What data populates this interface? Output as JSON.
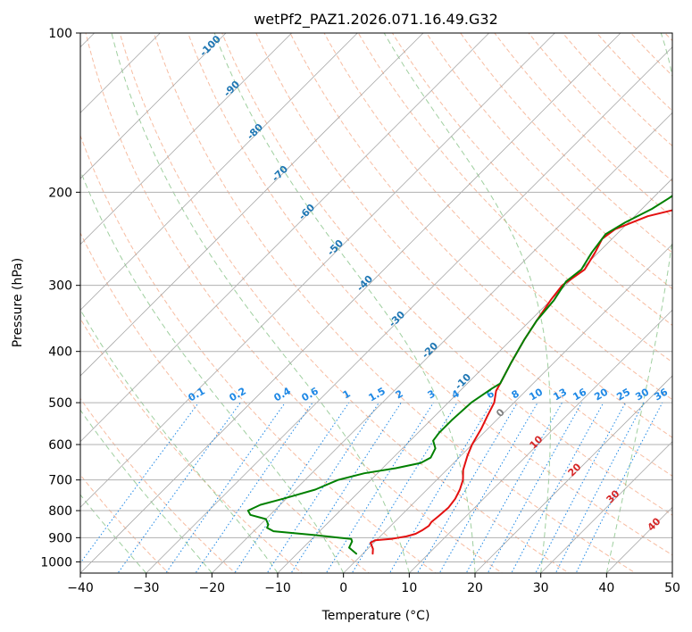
{
  "chart_data": {
    "type": "line",
    "title": "wetPf2_PAZ1.2026.071.16.49.G32",
    "xlabel": "Temperature (°C)",
    "ylabel": "Pressure (hPa)",
    "xlim": [
      -40,
      50
    ],
    "ylim": [
      1050,
      100
    ],
    "y_scale": "log",
    "grid": true,
    "x_ticks": [
      -40,
      -30,
      -20,
      -10,
      0,
      10,
      20,
      30,
      40,
      50
    ],
    "x_tick_labels": [
      "−40",
      "−30",
      "−20",
      "−10",
      "0",
      "10",
      "20",
      "30",
      "40",
      "50"
    ],
    "y_ticks": [
      100,
      200,
      300,
      400,
      500,
      600,
      700,
      800,
      900,
      1000
    ],
    "y_tick_labels": [
      "100",
      "200",
      "300",
      "400",
      "500",
      "600",
      "700",
      "800",
      "900",
      "1000"
    ],
    "series": [
      {
        "name": "Temperature",
        "color": "#e31010",
        "points": [
          [
            1.5,
            965
          ],
          [
            0.8,
            945
          ],
          [
            -0.5,
            920
          ],
          [
            -0.2,
            910
          ],
          [
            2.0,
            905
          ],
          [
            4.0,
            895
          ],
          [
            5.0,
            885
          ],
          [
            5.5,
            870
          ],
          [
            5.8,
            855
          ],
          [
            5.6,
            840
          ],
          [
            5.8,
            820
          ],
          [
            6.0,
            790
          ],
          [
            5.7,
            760
          ],
          [
            5.0,
            730
          ],
          [
            4.0,
            700
          ],
          [
            2.5,
            670
          ],
          [
            1.0,
            630
          ],
          [
            0.0,
            600
          ],
          [
            -1.0,
            560
          ],
          [
            -2.0,
            530
          ],
          [
            -3.0,
            500
          ],
          [
            -4.5,
            475
          ],
          [
            -5.0,
            460
          ],
          [
            -6.5,
            420
          ],
          [
            -8.0,
            380
          ],
          [
            -9.0,
            350
          ],
          [
            -10.0,
            320
          ],
          [
            -10.5,
            300
          ],
          [
            -9.5,
            280
          ],
          [
            -10.5,
            260
          ],
          [
            -11.5,
            245
          ],
          [
            -11.0,
            235
          ],
          [
            -8.0,
            222
          ],
          [
            -3.0,
            212
          ],
          [
            5.0,
            200
          ],
          [
            9.0,
            194
          ],
          [
            14.0,
            180
          ],
          [
            17.0,
            165
          ],
          [
            20.0,
            150
          ],
          [
            23.0,
            135
          ],
          [
            24.5,
            125
          ],
          [
            26.0,
            118
          ],
          [
            28.0,
            110
          ],
          [
            30.0,
            100
          ]
        ]
      },
      {
        "name": "Dewpoint",
        "color": "#008000",
        "points": [
          [
            -1.0,
            965
          ],
          [
            -3.0,
            940
          ],
          [
            -3.5,
            915
          ],
          [
            -4.0,
            905
          ],
          [
            -10.0,
            890
          ],
          [
            -17.0,
            875
          ],
          [
            -18.5,
            862
          ],
          [
            -18.8,
            850
          ],
          [
            -20.0,
            830
          ],
          [
            -23.0,
            815
          ],
          [
            -24.0,
            800
          ],
          [
            -23.0,
            780
          ],
          [
            -20.5,
            760
          ],
          [
            -17.0,
            730
          ],
          [
            -15.0,
            700
          ],
          [
            -12.0,
            680
          ],
          [
            -8.0,
            665
          ],
          [
            -5.0,
            650
          ],
          [
            -4.3,
            635
          ],
          [
            -5.0,
            610
          ],
          [
            -6.5,
            590
          ],
          [
            -6.8,
            570
          ],
          [
            -6.8,
            540
          ],
          [
            -6.5,
            500
          ],
          [
            -5.5,
            470
          ],
          [
            -5.0,
            460
          ],
          [
            -6.5,
            420
          ],
          [
            -8.0,
            380
          ],
          [
            -9.0,
            350
          ],
          [
            -9.5,
            320
          ],
          [
            -10.5,
            295
          ],
          [
            -10.0,
            280
          ],
          [
            -11.0,
            260
          ],
          [
            -11.7,
            240
          ],
          [
            -10.5,
            228
          ],
          [
            -8.5,
            215
          ],
          [
            -7.5,
            205
          ],
          [
            -6.8,
            195
          ],
          [
            -6.8,
            185
          ],
          [
            -5.0,
            175
          ],
          [
            -3.0,
            170
          ],
          [
            -1.5,
            160
          ],
          [
            1.0,
            145
          ],
          [
            4.0,
            130
          ],
          [
            6.0,
            120
          ],
          [
            8.0,
            110
          ],
          [
            10.0,
            100
          ]
        ]
      }
    ],
    "isotherm_labels": [
      "-100",
      "-90",
      "-80",
      "-70",
      "-60",
      "-50",
      "-40",
      "-30",
      "-20",
      "-10"
    ],
    "mixing_ratio_labels": [
      "0.1",
      "0.2",
      "0.4",
      "0.6",
      "1",
      "1.5",
      "2",
      "3",
      "4",
      "6",
      "8",
      "10",
      "13",
      "16",
      "20",
      "25",
      "30",
      "36"
    ],
    "mixing_ratio_values": [
      0.1,
      0.2,
      0.4,
      0.6,
      1,
      1.5,
      2,
      3,
      4,
      6,
      8,
      10,
      13,
      16,
      20,
      25,
      30,
      36
    ],
    "moist_adiabat_labels": [
      "0",
      "10",
      "20",
      "30",
      "40"
    ],
    "colors": {
      "axis": "#000000",
      "grid": "#b0b0b0",
      "skewed_isotherm": "#9a9a9a",
      "dry_adiabat": "#f4a582",
      "moist_adiabat": "#7fbf7f",
      "mixing_ratio": "#1e88e5",
      "isotherm_label": "#1f77b4",
      "moist_label_zero": "#808080",
      "moist_label": "#d62728"
    }
  }
}
